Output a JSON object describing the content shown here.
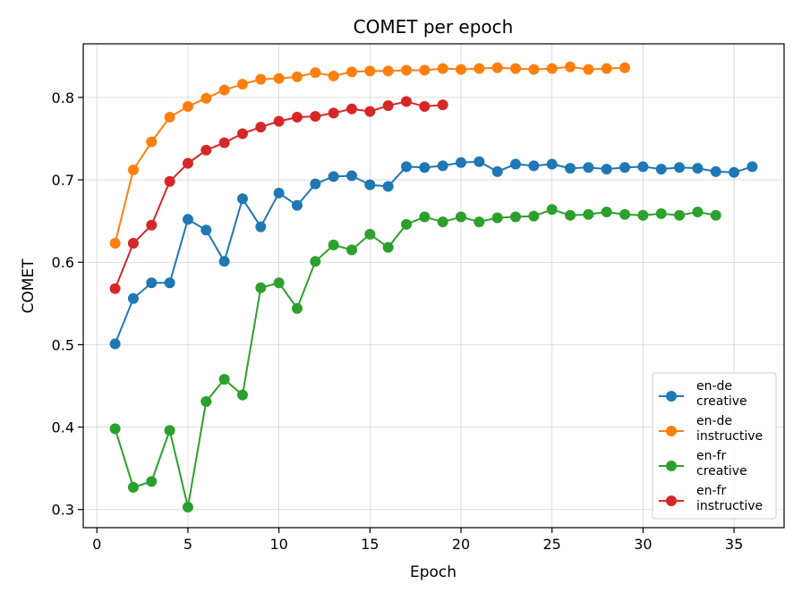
{
  "chart_data": {
    "type": "line",
    "title": "COMET per epoch",
    "xlabel": "Epoch",
    "ylabel": "COMET",
    "xlim": [
      -0.75,
      37.75
    ],
    "ylim": [
      0.278,
      0.865
    ],
    "xticks": [
      0,
      5,
      10,
      15,
      20,
      25,
      30,
      35
    ],
    "yticks": [
      0.3,
      0.4,
      0.5,
      0.6,
      0.7,
      0.8
    ],
    "grid": true,
    "legend_position": "bottom-right",
    "series": [
      {
        "name": [
          "en-de",
          "creative"
        ],
        "color": "#1f77b4",
        "x": [
          1,
          2,
          3,
          4,
          5,
          6,
          7,
          8,
          9,
          10,
          11,
          12,
          13,
          14,
          15,
          16,
          17,
          18,
          19,
          20,
          21,
          22,
          23,
          24,
          25,
          26,
          27,
          28,
          29,
          30,
          31,
          32,
          33,
          34,
          35,
          36
        ],
        "values": [
          0.501,
          0.556,
          0.575,
          0.575,
          0.652,
          0.639,
          0.601,
          0.677,
          0.643,
          0.684,
          0.669,
          0.695,
          0.704,
          0.705,
          0.694,
          0.692,
          0.716,
          0.715,
          0.717,
          0.721,
          0.722,
          0.71,
          0.719,
          0.717,
          0.719,
          0.714,
          0.715,
          0.713,
          0.715,
          0.716,
          0.713,
          0.715,
          0.714,
          0.71,
          0.709,
          0.716
        ]
      },
      {
        "name": [
          "en-de",
          "instructive"
        ],
        "color": "#ff7f0e",
        "x": [
          1,
          2,
          3,
          4,
          5,
          6,
          7,
          8,
          9,
          10,
          11,
          12,
          13,
          14,
          15,
          16,
          17,
          18,
          19,
          20,
          21,
          22,
          23,
          24,
          25,
          26,
          27,
          28,
          29
        ],
        "values": [
          0.623,
          0.712,
          0.746,
          0.776,
          0.789,
          0.799,
          0.809,
          0.816,
          0.822,
          0.823,
          0.825,
          0.83,
          0.826,
          0.831,
          0.832,
          0.832,
          0.833,
          0.833,
          0.835,
          0.834,
          0.835,
          0.836,
          0.835,
          0.834,
          0.835,
          0.837,
          0.834,
          0.835,
          0.836
        ]
      },
      {
        "name": [
          "en-fr",
          "creative"
        ],
        "color": "#2ca02c",
        "x": [
          1,
          2,
          3,
          4,
          5,
          6,
          7,
          8,
          9,
          10,
          11,
          12,
          13,
          14,
          15,
          16,
          17,
          18,
          19,
          20,
          21,
          22,
          23,
          24,
          25,
          26,
          27,
          28,
          29,
          30,
          31,
          32,
          33,
          34
        ],
        "values": [
          0.398,
          0.327,
          0.334,
          0.396,
          0.303,
          0.431,
          0.458,
          0.439,
          0.569,
          0.575,
          0.544,
          0.601,
          0.621,
          0.615,
          0.634,
          0.618,
          0.646,
          0.655,
          0.649,
          0.655,
          0.649,
          0.654,
          0.655,
          0.656,
          0.664,
          0.657,
          0.658,
          0.661,
          0.658,
          0.657,
          0.659,
          0.657,
          0.661,
          0.657
        ]
      },
      {
        "name": [
          "en-fr",
          "instructive"
        ],
        "color": "#d62728",
        "x": [
          1,
          2,
          3,
          4,
          5,
          6,
          7,
          8,
          9,
          10,
          11,
          12,
          13,
          14,
          15,
          16,
          17,
          18,
          19
        ],
        "values": [
          0.568,
          0.623,
          0.645,
          0.698,
          0.72,
          0.736,
          0.745,
          0.756,
          0.764,
          0.771,
          0.776,
          0.777,
          0.781,
          0.786,
          0.783,
          0.79,
          0.795,
          0.789,
          0.791
        ]
      }
    ]
  }
}
